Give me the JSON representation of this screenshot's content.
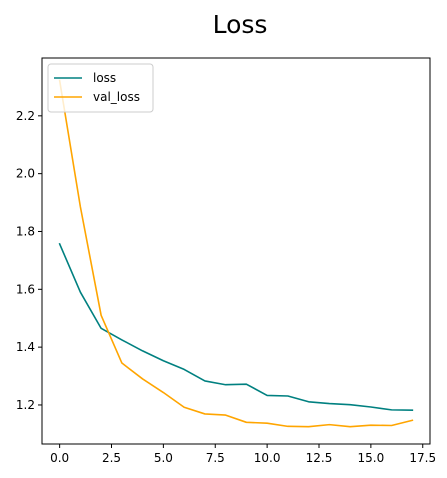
{
  "chart_data": {
    "type": "line",
    "title": "Loss",
    "xlabel": "",
    "ylabel": "",
    "xlim": [
      -0.85,
      17.85
    ],
    "ylim": [
      1.065,
      2.4
    ],
    "xticks": [
      0.0,
      2.5,
      5.0,
      7.5,
      10.0,
      12.5,
      15.0,
      17.5
    ],
    "xtick_labels": [
      "0.0",
      "2.5",
      "5.0",
      "7.5",
      "10.0",
      "12.5",
      "15.0",
      "17.5"
    ],
    "yticks": [
      1.2,
      1.4,
      1.6,
      1.8,
      2.0,
      2.2
    ],
    "ytick_labels": [
      "1.2",
      "1.4",
      "1.6",
      "1.8",
      "2.0",
      "2.2"
    ],
    "grid": false,
    "legend_position": "top-left",
    "x": [
      0,
      1,
      2,
      3,
      4,
      5,
      6,
      7,
      8,
      9,
      10,
      11,
      12,
      13,
      14,
      15,
      16,
      17
    ],
    "series": [
      {
        "name": "loss",
        "color": "#008080",
        "values": [
          1.757,
          1.59,
          1.465,
          1.425,
          1.387,
          1.353,
          1.323,
          1.283,
          1.27,
          1.272,
          1.233,
          1.231,
          1.211,
          1.205,
          1.201,
          1.193,
          1.183,
          1.182
        ]
      },
      {
        "name": "val_loss",
        "color": "#FFA500",
        "values": [
          2.322,
          1.885,
          1.51,
          1.345,
          1.29,
          1.243,
          1.192,
          1.169,
          1.165,
          1.14,
          1.137,
          1.126,
          1.125,
          1.132,
          1.125,
          1.13,
          1.129,
          1.147
        ]
      }
    ]
  }
}
